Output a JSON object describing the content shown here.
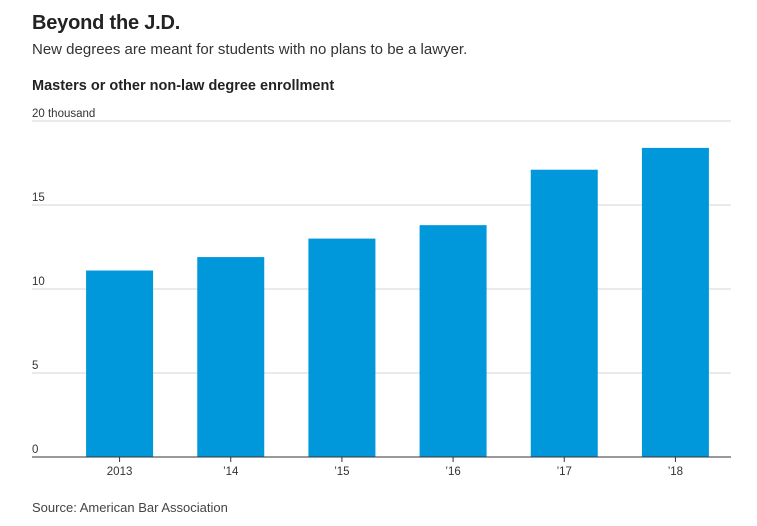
{
  "title": "Beyond the J.D.",
  "subtitle": "New degrees are meant for students with no plans to be a lawyer.",
  "chart_heading": "Masters or other non-law degree enrollment",
  "source": "Source: American Bar Association",
  "colors": {
    "bar": "#0098DB",
    "grid": "#D6D6D6",
    "axis": "#333333"
  },
  "chart_data": {
    "type": "bar",
    "title": "Masters or other non-law degree enrollment",
    "categories": [
      "2013",
      "’14",
      "’15",
      "’16",
      "’17",
      "’18"
    ],
    "values": [
      11.1,
      11.9,
      13.0,
      13.8,
      17.1,
      18.4
    ],
    "y_ticks": [
      0,
      5,
      10,
      15,
      20
    ],
    "y_tick_labels": [
      "0",
      "5",
      "10",
      "15",
      "20 thousand"
    ],
    "ylim": [
      0,
      20
    ],
    "xlabel": "",
    "ylabel": "",
    "grid": true
  }
}
